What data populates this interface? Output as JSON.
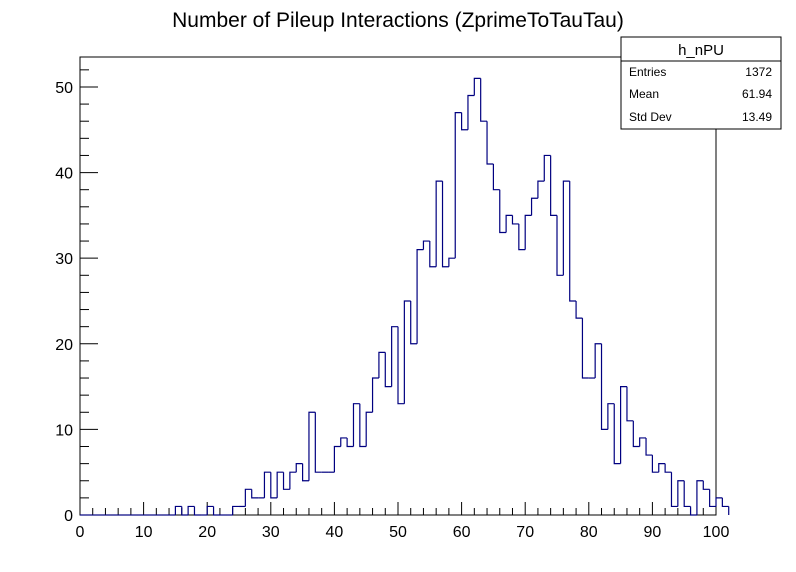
{
  "chart_data": {
    "type": "bar",
    "title": "Number of Pileup Interactions (ZprimeToTauTau)",
    "xlabel": "",
    "ylabel": "",
    "xlim": [
      0,
      100
    ],
    "ylim": [
      0,
      53.5
    ],
    "x_ticks": [
      0,
      10,
      20,
      30,
      40,
      50,
      60,
      70,
      80,
      90,
      100
    ],
    "y_ticks": [
      0,
      10,
      20,
      30,
      40,
      50
    ],
    "bin_width": 1,
    "bin_edges_start": 0,
    "line_color": "#000080",
    "grid": false,
    "legend": "none",
    "values": [
      0,
      0,
      0,
      0,
      0,
      0,
      0,
      0,
      0,
      0,
      0,
      0,
      0,
      0,
      0,
      1,
      0,
      1,
      0,
      0,
      1,
      0,
      0,
      0,
      1,
      1,
      3,
      2,
      2,
      5,
      2,
      5,
      3,
      5,
      6,
      4,
      12,
      5,
      5,
      5,
      8,
      9,
      8,
      13,
      8,
      12,
      16,
      19,
      15,
      22,
      13,
      25,
      20,
      31,
      32,
      29,
      39,
      29,
      30,
      47,
      45,
      49,
      51,
      46,
      41,
      38,
      33,
      35,
      34,
      31,
      35,
      37,
      39,
      42,
      35,
      28,
      39,
      25,
      23,
      16,
      16,
      20,
      10,
      13,
      6,
      15,
      11,
      8,
      9,
      7,
      5,
      6,
      5,
      1,
      4,
      1,
      0,
      4,
      3,
      1,
      2,
      1
    ],
    "stats_box": {
      "name": "h_nPU",
      "rows": [
        {
          "label": "Entries",
          "value": "1372"
        },
        {
          "label": "Mean",
          "value": "61.94"
        },
        {
          "label": "Std Dev",
          "value": "13.49"
        }
      ]
    }
  }
}
